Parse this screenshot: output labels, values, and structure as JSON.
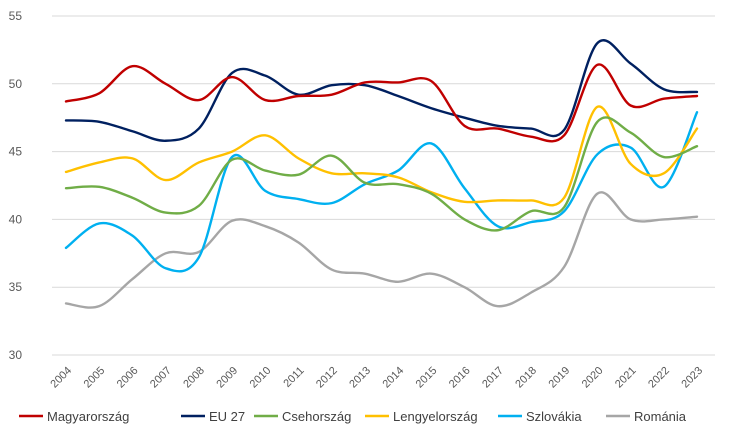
{
  "chart_data": {
    "type": "line",
    "title": "",
    "xlabel": "",
    "ylabel": "",
    "ylim": [
      30,
      55
    ],
    "yticks": [
      "30",
      "35",
      "40",
      "45",
      "50",
      "55"
    ],
    "grid": "horizontal",
    "legend_position": "bottom",
    "categories": [
      "2004",
      "2005",
      "2006",
      "2007",
      "2008",
      "2009",
      "2010",
      "2011",
      "2012",
      "2013",
      "2014",
      "2015",
      "2016",
      "2017",
      "2018",
      "2019",
      "2020",
      "2021",
      "2022",
      "2023"
    ],
    "series": [
      {
        "name": "Magyarország",
        "color": "#c00000",
        "values": [
          48.7,
          49.3,
          51.3,
          50.0,
          48.8,
          50.5,
          48.8,
          49.1,
          49.2,
          50.1,
          50.1,
          50.2,
          46.9,
          46.7,
          46.1,
          46.2,
          51.4,
          48.4,
          48.9,
          49.1
        ]
      },
      {
        "name": "EU 27",
        "color": "#002060",
        "values": [
          47.3,
          47.2,
          46.5,
          45.8,
          46.7,
          50.8,
          50.6,
          49.2,
          49.9,
          49.9,
          49.1,
          48.2,
          47.5,
          46.9,
          46.7,
          46.6,
          53.0,
          51.5,
          49.6,
          49.4
        ]
      },
      {
        "name": "Csehország",
        "color": "#70ad47",
        "values": [
          42.3,
          42.4,
          41.6,
          40.5,
          41.0,
          44.4,
          43.6,
          43.3,
          44.7,
          42.7,
          42.6,
          41.9,
          40.0,
          39.2,
          40.6,
          40.9,
          47.2,
          46.4,
          44.6,
          45.4
        ]
      },
      {
        "name": "Lengyelország",
        "color": "#ffc000",
        "values": [
          43.5,
          44.2,
          44.5,
          42.9,
          44.2,
          45.0,
          46.2,
          44.5,
          43.4,
          43.4,
          43.1,
          42.0,
          41.3,
          41.4,
          41.4,
          41.6,
          48.3,
          44.1,
          43.4,
          46.7
        ]
      },
      {
        "name": "Szlovákia",
        "color": "#00b0f0",
        "values": [
          37.9,
          39.7,
          38.8,
          36.4,
          37.2,
          44.6,
          42.1,
          41.5,
          41.2,
          42.6,
          43.6,
          45.6,
          42.3,
          39.5,
          39.8,
          40.6,
          44.8,
          45.3,
          42.4,
          47.9
        ]
      },
      {
        "name": "Románia",
        "color": "#a6a6a6",
        "values": [
          33.8,
          33.6,
          35.6,
          37.5,
          37.6,
          39.9,
          39.5,
          38.3,
          36.3,
          36.0,
          35.4,
          36.0,
          35.0,
          33.6,
          34.6,
          36.5,
          41.9,
          40.0,
          40.0,
          40.2
        ]
      }
    ]
  }
}
